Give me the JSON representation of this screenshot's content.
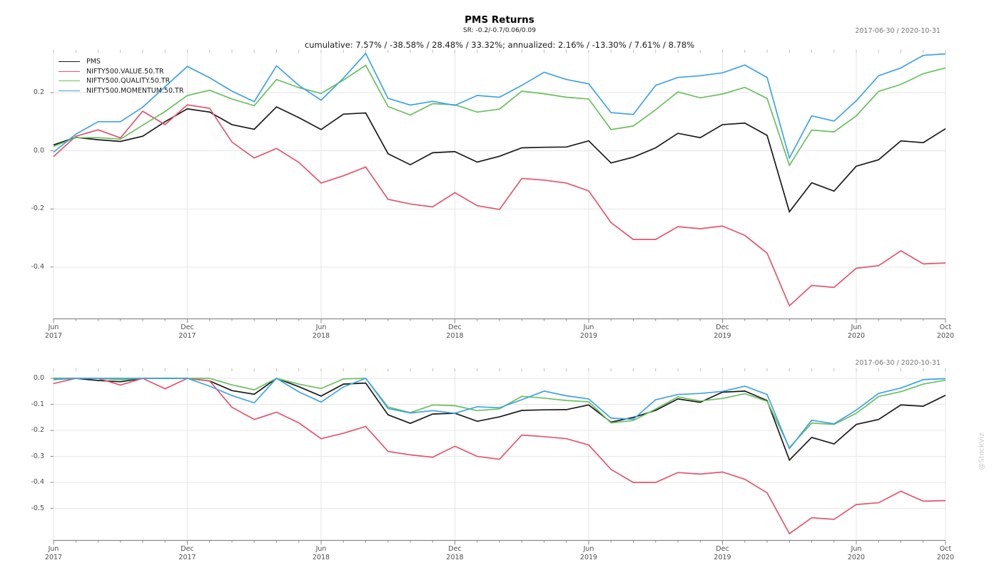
{
  "header": {
    "title": "PMS Returns",
    "subtitle": "SR: -0.2/-0.7/0.06/0.09",
    "summary": "cumulative: 7.57% / -38.58% / 28.48% / 33.32%; annualized: 2.16% / -13.30% / 7.61% / 8.78%",
    "date_range": "2017-06-30 / 2020-10-31"
  },
  "watermark": "@StockViz",
  "colors": {
    "pms": "#1a1a1a",
    "value": "#e4556e",
    "quality": "#68c15d",
    "momentum": "#3da3e8",
    "grid": "#e6e6e6",
    "axis": "#8c8c8c",
    "tick_text": "#4d4d4d",
    "muted_text": "#757575",
    "watermark": "#c9c9c9"
  },
  "legend": {
    "position": "top-left",
    "items": [
      {
        "label": "PMS",
        "color": "pms"
      },
      {
        "label": "NIFTY500.VALUE.50.TR",
        "color": "value"
      },
      {
        "label": "NIFTY500.QUALITY.50.TR",
        "color": "quality"
      },
      {
        "label": "NIFTY500.MOMENTUM.50.TR",
        "color": "momentum"
      }
    ]
  },
  "chart_data": [
    {
      "type": "line",
      "panel": "cumulative-returns",
      "title": "PMS Returns",
      "grid": true,
      "ylim": [
        -0.578,
        0.342
      ],
      "x": [
        "2017-06",
        "2017-07",
        "2017-08",
        "2017-09",
        "2017-10",
        "2017-11",
        "2017-12",
        "2018-01",
        "2018-02",
        "2018-03",
        "2018-04",
        "2018-05",
        "2018-06",
        "2018-07",
        "2018-08",
        "2018-09",
        "2018-10",
        "2018-11",
        "2018-12",
        "2019-01",
        "2019-02",
        "2019-03",
        "2019-04",
        "2019-05",
        "2019-06",
        "2019-07",
        "2019-08",
        "2019-09",
        "2019-10",
        "2019-11",
        "2019-12",
        "2020-01",
        "2020-02",
        "2020-03",
        "2020-04",
        "2020-05",
        "2020-06",
        "2020-07",
        "2020-08",
        "2020-09",
        "2020-10"
      ],
      "x_tick_labels": [
        {
          "index": 0,
          "line1": "Jun",
          "line2": "2017"
        },
        {
          "index": 6,
          "line1": "Dec",
          "line2": "2017"
        },
        {
          "index": 12,
          "line1": "Jun",
          "line2": "2018"
        },
        {
          "index": 18,
          "line1": "Dec",
          "line2": "2018"
        },
        {
          "index": 24,
          "line1": "Jun",
          "line2": "2019"
        },
        {
          "index": 30,
          "line1": "Dec",
          "line2": "2019"
        },
        {
          "index": 36,
          "line1": "Jun",
          "line2": "2020"
        },
        {
          "index": 40,
          "line1": "Oct",
          "line2": "2020"
        }
      ],
      "y_ticks": [
        {
          "value": 0.2,
          "label": "0.2"
        },
        {
          "value": 0.0,
          "label": "0.0"
        },
        {
          "value": -0.2,
          "label": "-0.2"
        },
        {
          "value": -0.4,
          "label": "-0.4"
        }
      ],
      "series": [
        {
          "name": "PMS",
          "color": "pms",
          "values": [
            0.02,
            0.046,
            0.038,
            0.032,
            0.05,
            0.1,
            0.144,
            0.133,
            0.09,
            0.074,
            0.151,
            0.114,
            0.073,
            0.126,
            0.13,
            -0.01,
            -0.048,
            -0.007,
            -0.003,
            -0.039,
            -0.019,
            0.01,
            0.012,
            0.013,
            0.034,
            -0.042,
            -0.022,
            0.01,
            0.06,
            0.045,
            0.09,
            0.095,
            0.053,
            -0.21,
            -0.11,
            -0.139,
            -0.053,
            -0.031,
            0.034,
            0.028,
            0.0757
          ]
        },
        {
          "name": "NIFTY500.VALUE.50.TR",
          "color": "value",
          "values": [
            -0.02,
            0.05,
            0.072,
            0.044,
            0.136,
            0.09,
            0.158,
            0.146,
            0.03,
            -0.025,
            0.008,
            -0.04,
            -0.111,
            -0.086,
            -0.056,
            -0.167,
            -0.183,
            -0.193,
            -0.144,
            -0.189,
            -0.202,
            -0.095,
            -0.101,
            -0.111,
            -0.138,
            -0.247,
            -0.305,
            -0.305,
            -0.261,
            -0.268,
            -0.259,
            -0.291,
            -0.352,
            -0.533,
            -0.463,
            -0.47,
            -0.404,
            -0.395,
            -0.344,
            -0.389,
            -0.3858
          ]
        },
        {
          "name": "NIFTY500.QUALITY.50.TR",
          "color": "quality",
          "values": [
            0.015,
            0.045,
            0.045,
            0.04,
            0.088,
            0.135,
            0.19,
            0.208,
            0.178,
            0.155,
            0.245,
            0.217,
            0.197,
            0.243,
            0.294,
            0.152,
            0.123,
            0.162,
            0.158,
            0.133,
            0.143,
            0.205,
            0.196,
            0.184,
            0.178,
            0.073,
            0.085,
            0.141,
            0.202,
            0.182,
            0.195,
            0.218,
            0.18,
            -0.05,
            0.071,
            0.065,
            0.12,
            0.204,
            0.228,
            0.265,
            0.2848
          ]
        },
        {
          "name": "NIFTY500.MOMENTUM.50.TR",
          "color": "momentum",
          "values": [
            -0.005,
            0.057,
            0.1,
            0.1,
            0.15,
            0.22,
            0.29,
            0.251,
            0.205,
            0.169,
            0.292,
            0.225,
            0.174,
            0.25,
            0.335,
            0.18,
            0.157,
            0.17,
            0.156,
            0.19,
            0.184,
            0.225,
            0.27,
            0.245,
            0.23,
            0.131,
            0.125,
            0.225,
            0.252,
            0.258,
            0.268,
            0.295,
            0.252,
            -0.025,
            0.12,
            0.102,
            0.172,
            0.258,
            0.285,
            0.328,
            0.3332
          ]
        }
      ]
    },
    {
      "type": "line",
      "panel": "drawdowns",
      "title": "Drawdowns",
      "grid": true,
      "ylim": [
        -0.623,
        0.033
      ],
      "x": [
        "2017-06",
        "2017-07",
        "2017-08",
        "2017-09",
        "2017-10",
        "2017-11",
        "2017-12",
        "2018-01",
        "2018-02",
        "2018-03",
        "2018-04",
        "2018-05",
        "2018-06",
        "2018-07",
        "2018-08",
        "2018-09",
        "2018-10",
        "2018-11",
        "2018-12",
        "2019-01",
        "2019-02",
        "2019-03",
        "2019-04",
        "2019-05",
        "2019-06",
        "2019-07",
        "2019-08",
        "2019-09",
        "2019-10",
        "2019-11",
        "2019-12",
        "2020-01",
        "2020-02",
        "2020-03",
        "2020-04",
        "2020-05",
        "2020-06",
        "2020-07",
        "2020-08",
        "2020-09",
        "2020-10"
      ],
      "x_tick_labels": [
        {
          "index": 0,
          "line1": "Jun",
          "line2": "2017"
        },
        {
          "index": 6,
          "line1": "Dec",
          "line2": "2017"
        },
        {
          "index": 12,
          "line1": "Jun",
          "line2": "2018"
        },
        {
          "index": 18,
          "line1": "Dec",
          "line2": "2018"
        },
        {
          "index": 24,
          "line1": "Jun",
          "line2": "2019"
        },
        {
          "index": 30,
          "line1": "Dec",
          "line2": "2019"
        },
        {
          "index": 36,
          "line1": "Jun",
          "line2": "2020"
        },
        {
          "index": 40,
          "line1": "Oct",
          "line2": "2020"
        }
      ],
      "y_ticks": [
        {
          "value": 0.0,
          "label": "0.0"
        },
        {
          "value": -0.1,
          "label": "-0.1"
        },
        {
          "value": -0.2,
          "label": "-0.2"
        },
        {
          "value": -0.3,
          "label": "-0.3"
        },
        {
          "value": -0.4,
          "label": "-0.4"
        },
        {
          "value": -0.5,
          "label": "-0.5"
        }
      ],
      "series": [
        {
          "name": "PMS",
          "color": "pms",
          "values": [
            0,
            0,
            -0.008,
            -0.013,
            0,
            0,
            0,
            -0.01,
            -0.047,
            -0.061,
            0,
            -0.032,
            -0.068,
            -0.022,
            -0.018,
            -0.14,
            -0.173,
            -0.137,
            -0.134,
            -0.165,
            -0.148,
            -0.123,
            -0.121,
            -0.12,
            -0.102,
            -0.168,
            -0.15,
            -0.123,
            -0.079,
            -0.092,
            -0.053,
            -0.049,
            -0.085,
            -0.314,
            -0.227,
            -0.252,
            -0.177,
            -0.158,
            -0.102,
            -0.107,
            -0.065
          ]
        },
        {
          "name": "NIFTY500.VALUE.50.TR",
          "color": "value",
          "values": [
            -0.02,
            0,
            0,
            -0.026,
            0,
            -0.04,
            0,
            -0.01,
            -0.111,
            -0.158,
            -0.13,
            -0.171,
            -0.232,
            -0.211,
            -0.185,
            -0.281,
            -0.294,
            -0.303,
            -0.261,
            -0.3,
            -0.311,
            -0.218,
            -0.224,
            -0.232,
            -0.256,
            -0.35,
            -0.4,
            -0.4,
            -0.362,
            -0.368,
            -0.36,
            -0.388,
            -0.44,
            -0.597,
            -0.536,
            -0.542,
            -0.485,
            -0.478,
            -0.434,
            -0.472,
            -0.47
          ]
        },
        {
          "name": "NIFTY500.QUALITY.50.TR",
          "color": "quality",
          "values": [
            0,
            0,
            0,
            -0.005,
            0,
            0,
            0,
            0,
            -0.025,
            -0.044,
            0,
            -0.022,
            -0.039,
            -0.002,
            0,
            -0.11,
            -0.132,
            -0.102,
            -0.105,
            -0.124,
            -0.117,
            -0.069,
            -0.076,
            -0.085,
            -0.09,
            -0.171,
            -0.162,
            -0.118,
            -0.071,
            -0.087,
            -0.077,
            -0.059,
            -0.088,
            -0.266,
            -0.172,
            -0.177,
            -0.134,
            -0.07,
            -0.051,
            -0.022,
            -0.007
          ]
        },
        {
          "name": "NIFTY500.MOMENTUM.50.TR",
          "color": "momentum",
          "values": [
            -0.005,
            0,
            0,
            0,
            0,
            0,
            0,
            -0.03,
            -0.066,
            -0.094,
            0,
            -0.052,
            -0.091,
            -0.033,
            0,
            -0.116,
            -0.133,
            -0.124,
            -0.134,
            -0.109,
            -0.113,
            -0.082,
            -0.049,
            -0.067,
            -0.079,
            -0.153,
            -0.157,
            -0.082,
            -0.062,
            -0.058,
            -0.05,
            -0.03,
            -0.062,
            -0.27,
            -0.161,
            -0.175,
            -0.122,
            -0.058,
            -0.037,
            -0.005,
            -0.001
          ]
        }
      ]
    }
  ]
}
